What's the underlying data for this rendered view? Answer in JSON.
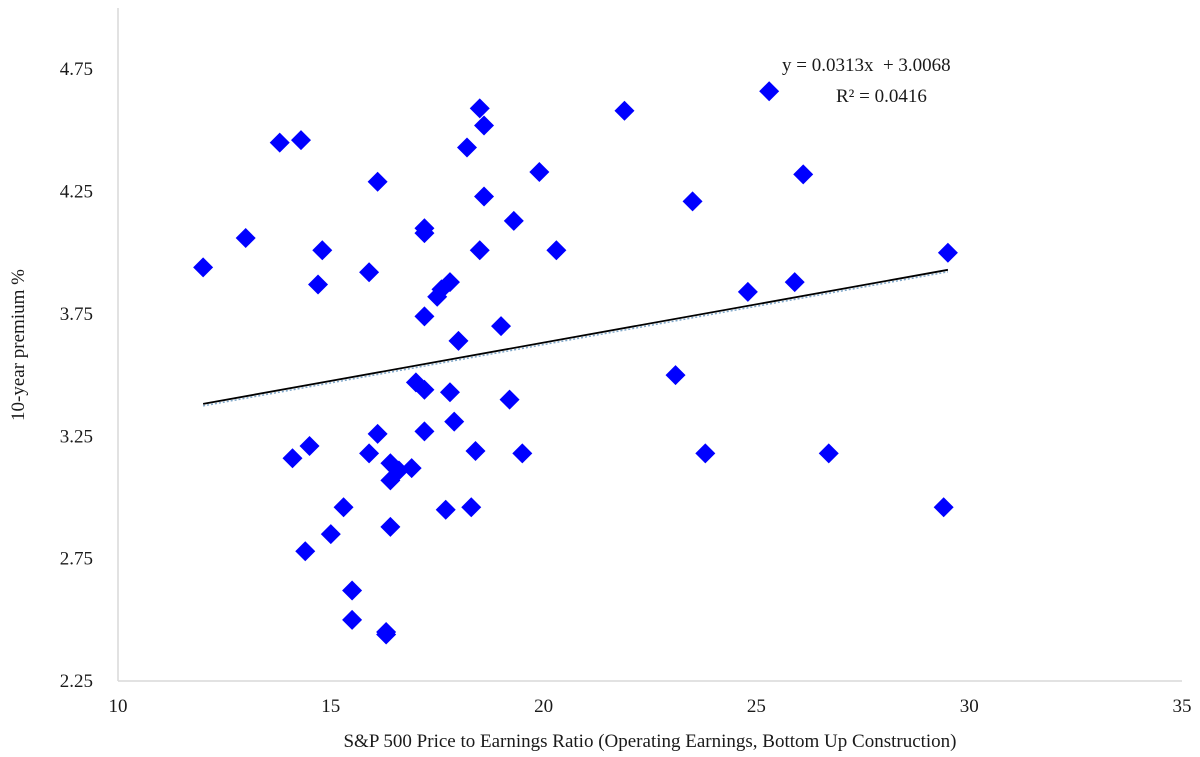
{
  "chart_data": {
    "type": "scatter",
    "title": "",
    "xlabel": "S&P 500 Price to Earnings Ratio (Operating Earnings, Bottom Up Construction)",
    "ylabel": "10-year premium %",
    "xlim": [
      10,
      35
    ],
    "ylim": [
      2.25,
      5.0
    ],
    "xticks": [
      "10",
      "15",
      "20",
      "25",
      "30",
      "35"
    ],
    "yticks": [
      "2.25",
      "2.75",
      "3.25",
      "3.75",
      "4.25",
      "4.75"
    ],
    "grid": false,
    "marker_color": "#0000ff",
    "trendline_color": "#000000",
    "trendline": {
      "slope": 0.0313,
      "intercept": 3.0068,
      "x_range": [
        12,
        29.5
      ],
      "equation_label": "y = 0.0313x  + 3.0068",
      "r2_label": "R² = 0.0416"
    },
    "points": [
      [
        12.0,
        3.94
      ],
      [
        13.0,
        4.06
      ],
      [
        13.8,
        4.45
      ],
      [
        14.3,
        4.46
      ],
      [
        14.1,
        3.16
      ],
      [
        14.4,
        2.78
      ],
      [
        14.5,
        3.21
      ],
      [
        14.7,
        3.87
      ],
      [
        14.8,
        4.01
      ],
      [
        15.0,
        2.85
      ],
      [
        15.3,
        2.96
      ],
      [
        15.5,
        2.62
      ],
      [
        15.5,
        2.5
      ],
      [
        15.9,
        3.92
      ],
      [
        15.9,
        3.18
      ],
      [
        16.1,
        3.26
      ],
      [
        16.1,
        4.29
      ],
      [
        16.3,
        2.45
      ],
      [
        16.3,
        2.44
      ],
      [
        16.4,
        2.88
      ],
      [
        16.4,
        3.14
      ],
      [
        16.4,
        3.07
      ],
      [
        16.6,
        3.11
      ],
      [
        16.9,
        3.12
      ],
      [
        17.0,
        3.47
      ],
      [
        17.2,
        3.44
      ],
      [
        17.2,
        3.27
      ],
      [
        17.2,
        3.74
      ],
      [
        17.2,
        4.1
      ],
      [
        17.2,
        4.08
      ],
      [
        17.5,
        3.82
      ],
      [
        17.6,
        3.85
      ],
      [
        17.7,
        2.95
      ],
      [
        17.8,
        3.88
      ],
      [
        17.8,
        3.43
      ],
      [
        17.9,
        3.31
      ],
      [
        18.0,
        3.64
      ],
      [
        18.2,
        4.43
      ],
      [
        18.3,
        2.96
      ],
      [
        18.4,
        3.19
      ],
      [
        18.5,
        4.01
      ],
      [
        18.5,
        4.59
      ],
      [
        18.6,
        4.52
      ],
      [
        18.6,
        4.23
      ],
      [
        19.0,
        3.7
      ],
      [
        19.2,
        3.4
      ],
      [
        19.3,
        4.13
      ],
      [
        19.5,
        3.18
      ],
      [
        19.9,
        4.33
      ],
      [
        20.3,
        4.01
      ],
      [
        21.9,
        4.58
      ],
      [
        23.1,
        3.5
      ],
      [
        23.5,
        4.21
      ],
      [
        23.8,
        3.18
      ],
      [
        24.8,
        3.84
      ],
      [
        25.3,
        4.66
      ],
      [
        25.9,
        3.88
      ],
      [
        26.1,
        4.32
      ],
      [
        26.7,
        3.18
      ],
      [
        29.4,
        2.96
      ],
      [
        29.5,
        4.0
      ]
    ]
  }
}
